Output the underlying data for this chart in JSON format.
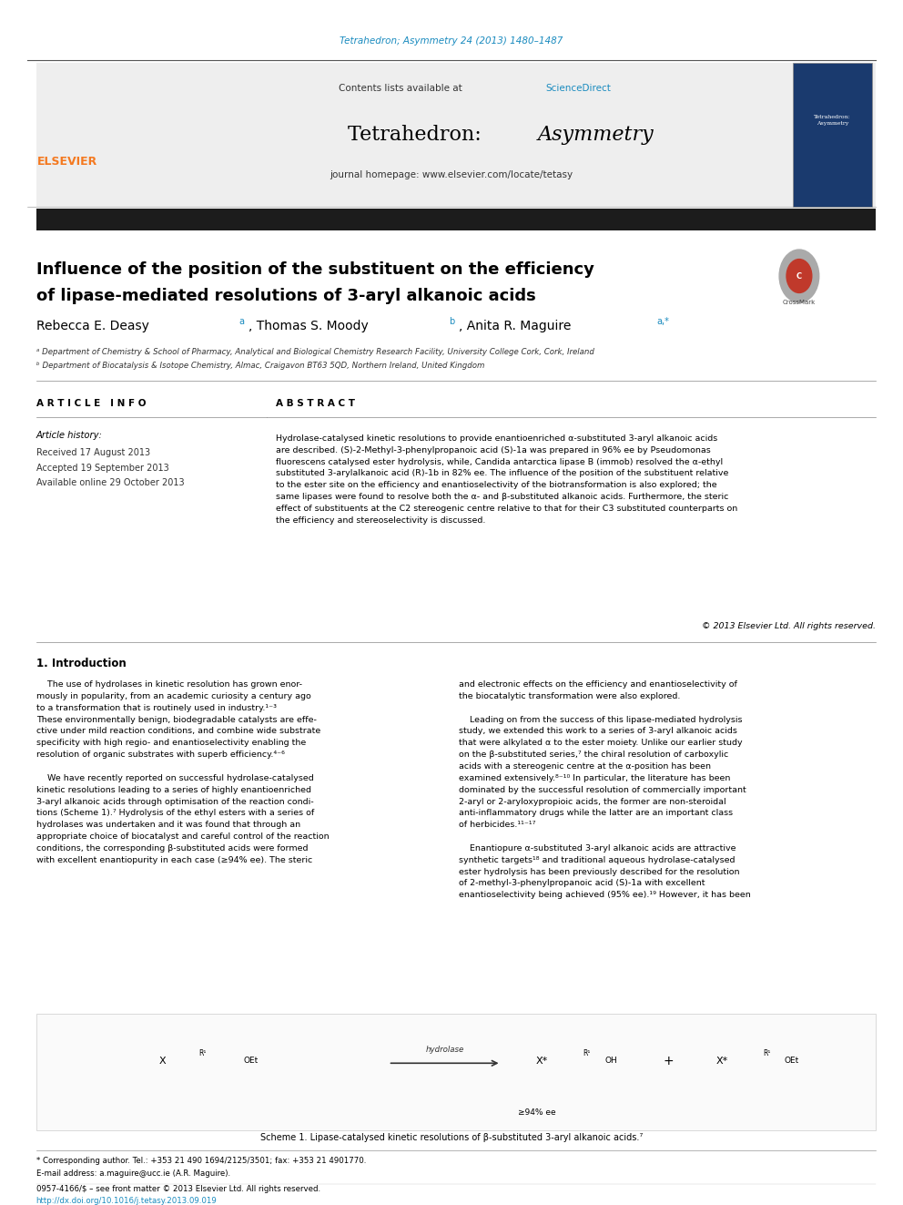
{
  "page_width": 9.92,
  "page_height": 13.23,
  "bg": "#ffffff",
  "cite_text": "Tetrahedron; Asymmetry 24 (2013) 1480–1487",
  "cite_color": "#1a8bbf",
  "journal_title_roman": "Tetrahedron: ",
  "journal_title_italic": "Asymmetry",
  "contents_prefix": "Contents lists available at ",
  "science_direct": "ScienceDirect",
  "sd_color": "#1a8bbf",
  "homepage": "journal homepage: www.elsevier.com/locate/tetasy",
  "elsevier_color": "#f47920",
  "header_bg": "#eeeeee",
  "black_bar": "#1c1c1c",
  "article_title_line1": "Influence of the position of the substituent on the efficiency",
  "article_title_line2": "of lipase-mediated resolutions of 3-aryl alkanoic acids",
  "affil_a": "ᵃ Department of Chemistry & School of Pharmacy, Analytical and Biological Chemistry Research Facility, University College Cork, Cork, Ireland",
  "affil_b": "ᵇ Department of Biocatalysis & Isotope Chemistry, Almac, Craigavon BT63 5QD, Northern Ireland, United Kingdom",
  "art_info_hdr": "A R T I C L E   I N F O",
  "art_hist_hdr": "Article history:",
  "received": "Received 17 August 2013",
  "accepted": "Accepted 19 September 2013",
  "available": "Available online 29 October 2013",
  "abs_hdr": "A B S T R A C T",
  "abstract": "Hydrolase-catalysed kinetic resolutions to provide enantioenriched α-substituted 3-aryl alkanoic acids\nare described. (S)-2-Methyl-3-phenylpropanoic acid (S)-1a was prepared in 96% ee by Pseudomonas\nfluorescens catalysed ester hydrolysis, while, Candida antarctica lipase B (immob) resolved the α-ethyl\nsubstituted 3-arylalkanoic acid (R)-1b in 82% ee. The influence of the position of the substituent relative\nto the ester site on the efficiency and enantioselectivity of the biotransformation is also explored; the\nsame lipases were found to resolve both the α- and β-substituted alkanoic acids. Furthermore, the steric\neffect of substituents at the C2 stereogenic centre relative to that for their C3 substituted counterparts on\nthe efficiency and stereoselectivity is discussed.",
  "copyright": "© 2013 Elsevier Ltd. All rights reserved.",
  "intro_hdr": "1. Introduction",
  "intro_left": "    The use of hydrolases in kinetic resolution has grown enor-\nmously in popularity, from an academic curiosity a century ago\nto a transformation that is routinely used in industry.¹⁻³\nThese environmentally benign, biodegradable catalysts are effe-\nctive under mild reaction conditions, and combine wide substrate\nspecificity with high regio- and enantioselectivity enabling the\nresolution of organic substrates with superb efficiency.⁴⁻⁶\n\n    We have recently reported on successful hydrolase-catalysed\nkinetic resolutions leading to a series of highly enantioenriched\n3-aryl alkanoic acids through optimisation of the reaction condi-\ntions (Scheme 1).⁷ Hydrolysis of the ethyl esters with a series of\nhydrolases was undertaken and it was found that through an\nappropriate choice of biocatalyst and careful control of the reaction\nconditions, the corresponding β-substituted acids were formed\nwith excellent enantiopurity in each case (≥94% ee). The steric",
  "intro_right": "and electronic effects on the efficiency and enantioselectivity of\nthe biocatalytic transformation were also explored.\n\n    Leading on from the success of this lipase-mediated hydrolysis\nstudy, we extended this work to a series of 3-aryl alkanoic acids\nthat were alkylated α to the ester moiety. Unlike our earlier study\non the β-substituted series,⁷ the chiral resolution of carboxylic\nacids with a stereogenic centre at the α-position has been\nexamined extensively.⁸⁻¹⁰ In particular, the literature has been\ndominated by the successful resolution of commercially important\n2-aryl or 2-aryloxypropioic acids, the former are non-steroidal\nanti-inflammatory drugs while the latter are an important class\nof herbicides.¹¹⁻¹⁷\n\n    Enantiopure α-substituted 3-aryl alkanoic acids are attractive\nsynthetic targets¹⁸ and traditional aqueous hydrolase-catalysed\nester hydrolysis has been previously described for the resolution\nof 2-methyl-3-phenylpropanoic acid (S)-1a with excellent\nenantioselectivity being achieved (95% ee).¹⁹ However, it has been",
  "scheme_caption": "Scheme 1. Lipase-catalysed kinetic resolutions of β-substituted 3-aryl alkanoic acids.⁷",
  "fn_star": "* Corresponding author. Tel.: +353 21 490 1694/2125/3501; fax: +353 21 4901770.",
  "fn_email": "E-mail address: a.maguire@ucc.ie (A.R. Maguire).",
  "fn_issn": "0957-4166/$ – see front matter © 2013 Elsevier Ltd. All rights reserved.",
  "fn_doi": "http://dx.doi.org/10.1016/j.tetasy.2013.09.019",
  "doi_color": "#1a8bbf",
  "cm_gray": "#aaaaaa",
  "cm_red": "#c0392b"
}
